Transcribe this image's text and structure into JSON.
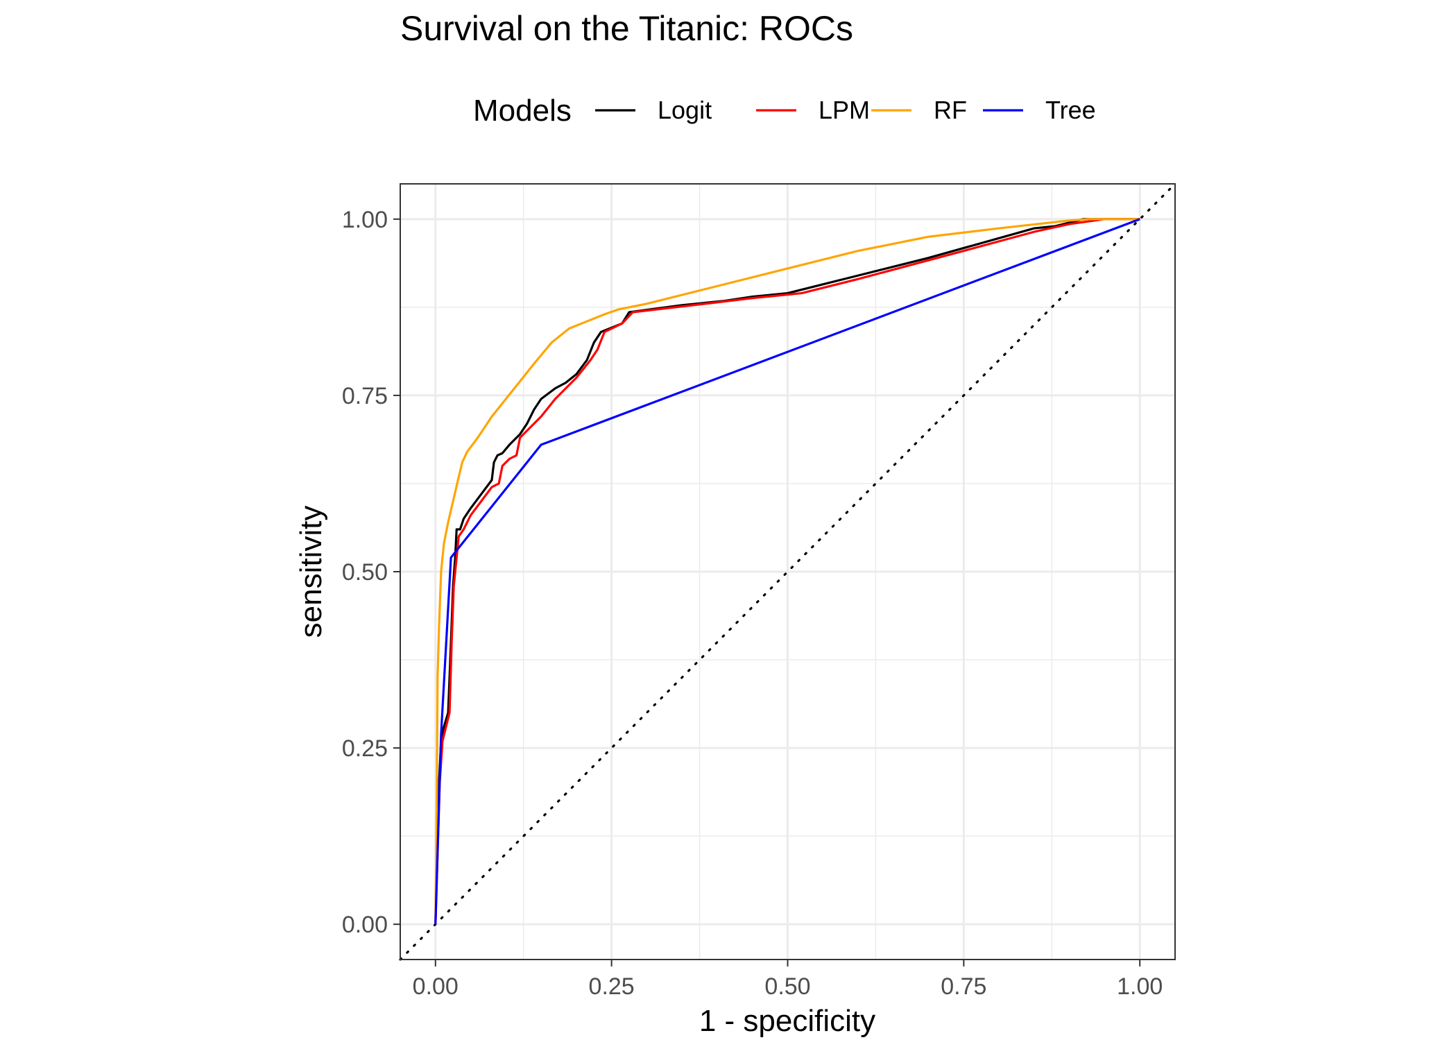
{
  "chart_data": {
    "type": "line",
    "title": "Survival on the Titanic: ROCs",
    "xlabel": "1 - specificity",
    "ylabel": "sensitivity",
    "xlim": [
      -0.05,
      1.05
    ],
    "ylim": [
      -0.05,
      1.05
    ],
    "x_ticks": [
      0,
      0.25,
      0.5,
      0.75,
      1
    ],
    "x_tick_labels": [
      "0.00",
      "0.25",
      "0.50",
      "0.75",
      "1.00"
    ],
    "y_ticks": [
      0,
      0.25,
      0.5,
      0.75,
      1
    ],
    "y_tick_labels": [
      "0.00",
      "0.25",
      "0.50",
      "0.75",
      "1.00"
    ],
    "grid": true,
    "legend": {
      "title": "Models",
      "position": "top"
    },
    "reference_line": {
      "style": "dotted",
      "color": "#000000",
      "points": [
        [
          -0.05,
          -0.05
        ],
        [
          1.05,
          1.05
        ]
      ]
    },
    "series": [
      {
        "name": "Logit",
        "color": "#000000",
        "points": [
          [
            0,
            0
          ],
          [
            0.002,
            0.1
          ],
          [
            0.005,
            0.2
          ],
          [
            0.008,
            0.26
          ],
          [
            0.012,
            0.28
          ],
          [
            0.018,
            0.3
          ],
          [
            0.022,
            0.4
          ],
          [
            0.025,
            0.48
          ],
          [
            0.028,
            0.52
          ],
          [
            0.03,
            0.56
          ],
          [
            0.035,
            0.56
          ],
          [
            0.04,
            0.575
          ],
          [
            0.05,
            0.59
          ],
          [
            0.065,
            0.61
          ],
          [
            0.08,
            0.63
          ],
          [
            0.083,
            0.655
          ],
          [
            0.088,
            0.665
          ],
          [
            0.095,
            0.668
          ],
          [
            0.105,
            0.68
          ],
          [
            0.12,
            0.695
          ],
          [
            0.13,
            0.71
          ],
          [
            0.14,
            0.73
          ],
          [
            0.15,
            0.745
          ],
          [
            0.17,
            0.76
          ],
          [
            0.185,
            0.768
          ],
          [
            0.2,
            0.78
          ],
          [
            0.215,
            0.8
          ],
          [
            0.225,
            0.825
          ],
          [
            0.235,
            0.84
          ],
          [
            0.265,
            0.852
          ],
          [
            0.275,
            0.868
          ],
          [
            0.35,
            0.878
          ],
          [
            0.41,
            0.884
          ],
          [
            0.45,
            0.89
          ],
          [
            0.5,
            0.895
          ],
          [
            0.6,
            0.92
          ],
          [
            0.7,
            0.945
          ],
          [
            0.85,
            0.987
          ],
          [
            0.88,
            0.99
          ],
          [
            0.92,
            1.0
          ],
          [
            1.0,
            1.0
          ]
        ]
      },
      {
        "name": "LPM",
        "color": "#ff0000",
        "points": [
          [
            0,
            0
          ],
          [
            0.003,
            0.1
          ],
          [
            0.006,
            0.2
          ],
          [
            0.01,
            0.26
          ],
          [
            0.015,
            0.28
          ],
          [
            0.02,
            0.3
          ],
          [
            0.023,
            0.4
          ],
          [
            0.026,
            0.48
          ],
          [
            0.03,
            0.52
          ],
          [
            0.033,
            0.55
          ],
          [
            0.04,
            0.56
          ],
          [
            0.05,
            0.58
          ],
          [
            0.065,
            0.6
          ],
          [
            0.08,
            0.62
          ],
          [
            0.09,
            0.625
          ],
          [
            0.095,
            0.65
          ],
          [
            0.105,
            0.66
          ],
          [
            0.115,
            0.665
          ],
          [
            0.12,
            0.69
          ],
          [
            0.13,
            0.7
          ],
          [
            0.15,
            0.72
          ],
          [
            0.17,
            0.745
          ],
          [
            0.19,
            0.765
          ],
          [
            0.2,
            0.775
          ],
          [
            0.22,
            0.8
          ],
          [
            0.23,
            0.815
          ],
          [
            0.24,
            0.84
          ],
          [
            0.265,
            0.852
          ],
          [
            0.28,
            0.868
          ],
          [
            0.4,
            0.882
          ],
          [
            0.45,
            0.888
          ],
          [
            0.52,
            0.895
          ],
          [
            0.6,
            0.915
          ],
          [
            0.75,
            0.955
          ],
          [
            0.85,
            0.982
          ],
          [
            0.9,
            0.993
          ],
          [
            0.95,
            1.0
          ],
          [
            1.0,
            1.0
          ]
        ]
      },
      {
        "name": "RF",
        "color": "#ffa500",
        "points": [
          [
            0,
            0
          ],
          [
            0.002,
            0.2
          ],
          [
            0.003,
            0.35
          ],
          [
            0.005,
            0.42
          ],
          [
            0.008,
            0.5
          ],
          [
            0.012,
            0.54
          ],
          [
            0.018,
            0.57
          ],
          [
            0.025,
            0.6
          ],
          [
            0.032,
            0.63
          ],
          [
            0.038,
            0.655
          ],
          [
            0.045,
            0.67
          ],
          [
            0.06,
            0.69
          ],
          [
            0.08,
            0.72
          ],
          [
            0.1,
            0.745
          ],
          [
            0.12,
            0.77
          ],
          [
            0.14,
            0.795
          ],
          [
            0.165,
            0.825
          ],
          [
            0.19,
            0.845
          ],
          [
            0.215,
            0.855
          ],
          [
            0.24,
            0.865
          ],
          [
            0.26,
            0.872
          ],
          [
            0.3,
            0.88
          ],
          [
            0.4,
            0.905
          ],
          [
            0.5,
            0.93
          ],
          [
            0.6,
            0.955
          ],
          [
            0.7,
            0.975
          ],
          [
            0.8,
            0.987
          ],
          [
            0.9,
            0.998
          ],
          [
            0.93,
            1.0
          ],
          [
            1.0,
            1.0
          ]
        ]
      },
      {
        "name": "Tree",
        "color": "#0000ff",
        "points": [
          [
            0,
            0
          ],
          [
            0.008,
            0.27
          ],
          [
            0.022,
            0.52
          ],
          [
            0.15,
            0.68
          ],
          [
            1.0,
            1.0
          ]
        ]
      }
    ]
  }
}
